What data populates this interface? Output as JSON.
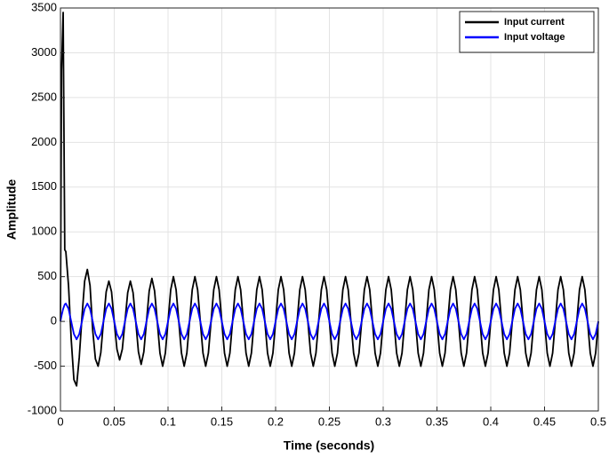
{
  "chart_data": {
    "type": "line",
    "xlabel": "Time (seconds)",
    "ylabel": "Amplitude",
    "xlim": [
      0,
      0.5
    ],
    "xticks": [
      0,
      0.05,
      0.1,
      0.15,
      0.2,
      0.25,
      0.3,
      0.35,
      0.4,
      0.45,
      0.5
    ],
    "ylim": [
      -1000,
      3500
    ],
    "yticks": [
      -1000,
      -500,
      0,
      500,
      1000,
      1500,
      2000,
      2500,
      3000,
      3500
    ],
    "grid": true,
    "legend": "upper-right",
    "x": [
      0,
      0.001,
      0.0025,
      0.004,
      0.005,
      0.0075,
      0.01,
      0.0125,
      0.015,
      0.0175,
      0.02,
      0.0225,
      0.025,
      0.0275,
      0.03,
      0.0325,
      0.035,
      0.0375,
      0.04,
      0.0425,
      0.045,
      0.0475,
      0.05,
      0.0525,
      0.055,
      0.0575,
      0.06,
      0.0625,
      0.065,
      0.0675,
      0.07,
      0.0725,
      0.075,
      0.0775,
      0.08,
      0.0825,
      0.085,
      0.0875,
      0.09,
      0.0925,
      0.095,
      0.0975,
      0.1,
      0.1025,
      0.105,
      0.1075,
      0.11,
      0.1125,
      0.115,
      0.1175,
      0.12,
      0.1225,
      0.125,
      0.1275,
      0.13,
      0.1325,
      0.135,
      0.1375,
      0.14,
      0.1425,
      0.145,
      0.1475,
      0.15,
      0.1525,
      0.155,
      0.1575,
      0.16,
      0.1625,
      0.165,
      0.1675,
      0.17,
      0.1725,
      0.175,
      0.1775,
      0.18,
      0.1825,
      0.185,
      0.1875,
      0.19,
      0.1925,
      0.195,
      0.1975,
      0.2,
      0.2025,
      0.205,
      0.2075,
      0.21,
      0.2125,
      0.215,
      0.2175,
      0.22,
      0.2225,
      0.225,
      0.2275,
      0.23,
      0.2325,
      0.235,
      0.2375,
      0.24,
      0.2425,
      0.245,
      0.2475,
      0.25,
      0.2525,
      0.255,
      0.2575,
      0.26,
      0.2625,
      0.265,
      0.2675,
      0.27,
      0.2725,
      0.275,
      0.2775,
      0.28,
      0.2825,
      0.285,
      0.2875,
      0.29,
      0.2925,
      0.295,
      0.2975,
      0.3,
      0.3025,
      0.305,
      0.3075,
      0.31,
      0.3125,
      0.315,
      0.3175,
      0.32,
      0.3225,
      0.325,
      0.3275,
      0.33,
      0.3325,
      0.335,
      0.3375,
      0.34,
      0.3425,
      0.345,
      0.3475,
      0.35,
      0.3525,
      0.355,
      0.3575,
      0.36,
      0.3625,
      0.365,
      0.3675,
      0.37,
      0.3725,
      0.375,
      0.3775,
      0.38,
      0.3825,
      0.385,
      0.3875,
      0.39,
      0.3925,
      0.395,
      0.3975,
      0.4,
      0.4025,
      0.405,
      0.4075,
      0.41,
      0.4125,
      0.415,
      0.4175,
      0.42,
      0.4225,
      0.425,
      0.4275,
      0.43,
      0.4325,
      0.435,
      0.4375,
      0.44,
      0.4425,
      0.445,
      0.4475,
      0.45,
      0.4525,
      0.455,
      0.4575,
      0.46,
      0.4625,
      0.465,
      0.4675,
      0.47,
      0.4725,
      0.475,
      0.4775,
      0.48,
      0.4825,
      0.485,
      0.4875,
      0.49,
      0.4925,
      0.495,
      0.4975,
      0.5
    ],
    "series": [
      {
        "name": "Input current",
        "color": "#000000",
        "values": [
          0,
          2800,
          3450,
          800,
          780,
          400,
          -200,
          -650,
          -720,
          -400,
          50,
          450,
          580,
          400,
          -100,
          -420,
          -500,
          -350,
          0,
          330,
          450,
          330,
          0,
          -310,
          -430,
          -310,
          0,
          320,
          450,
          320,
          0,
          -340,
          -480,
          -340,
          0,
          340,
          480,
          340,
          0,
          -354,
          -500,
          -354,
          0,
          354,
          500,
          354,
          0,
          -354,
          -500,
          -354,
          0,
          354,
          500,
          354,
          0,
          -354,
          -500,
          -354,
          0,
          354,
          500,
          354,
          0,
          -354,
          -500,
          -354,
          0,
          354,
          500,
          354,
          0,
          -354,
          -500,
          -354,
          0,
          354,
          500,
          354,
          0,
          -354,
          -500,
          -354,
          0,
          354,
          500,
          354,
          0,
          -354,
          -500,
          -354,
          0,
          354,
          500,
          354,
          0,
          -354,
          -500,
          -354,
          0,
          354,
          500,
          354,
          0,
          -354,
          -500,
          -354,
          0,
          354,
          500,
          354,
          0,
          -354,
          -500,
          -354,
          0,
          354,
          500,
          354,
          0,
          -354,
          -500,
          -354,
          0,
          354,
          500,
          354,
          0,
          -354,
          -500,
          -354,
          0,
          354,
          500,
          354,
          0,
          -354,
          -500,
          -354,
          0,
          354,
          500,
          354,
          0,
          -354,
          -500,
          -354,
          0,
          354,
          500,
          354,
          0,
          -354,
          -500,
          -354,
          0,
          354,
          500,
          354,
          0,
          -354,
          -500,
          -354,
          0,
          354,
          500,
          354,
          0,
          -354,
          -500,
          -354,
          0,
          354,
          500,
          354,
          0,
          -354,
          -500,
          -354,
          0,
          354,
          500,
          354,
          0,
          -354,
          -500,
          -354,
          0,
          354,
          500,
          354,
          0,
          -354,
          -500,
          -354,
          0,
          354,
          500,
          354,
          0,
          -354,
          -500,
          -354,
          0
        ]
      },
      {
        "name": "Input voltage",
        "color": "#0000ff",
        "values": [
          0,
          62,
          141,
          190,
          200,
          141,
          0,
          -141,
          -200,
          -141,
          0,
          141,
          200,
          141,
          0,
          -141,
          -200,
          -141,
          0,
          141,
          200,
          141,
          0,
          -141,
          -200,
          -141,
          0,
          141,
          200,
          141,
          0,
          -141,
          -200,
          -141,
          0,
          141,
          200,
          141,
          0,
          -141,
          -200,
          -141,
          0,
          141,
          200,
          141,
          0,
          -141,
          -200,
          -141,
          0,
          141,
          200,
          141,
          0,
          -141,
          -200,
          -141,
          0,
          141,
          200,
          141,
          0,
          -141,
          -200,
          -141,
          0,
          141,
          200,
          141,
          0,
          -141,
          -200,
          -141,
          0,
          141,
          200,
          141,
          0,
          -141,
          -200,
          -141,
          0,
          141,
          200,
          141,
          0,
          -141,
          -200,
          -141,
          0,
          141,
          200,
          141,
          0,
          -141,
          -200,
          -141,
          0,
          141,
          200,
          141,
          0,
          -141,
          -200,
          -141,
          0,
          141,
          200,
          141,
          0,
          -141,
          -200,
          -141,
          0,
          141,
          200,
          141,
          0,
          -141,
          -200,
          -141,
          0,
          141,
          200,
          141,
          0,
          -141,
          -200,
          -141,
          0,
          141,
          200,
          141,
          0,
          -141,
          -200,
          -141,
          0,
          141,
          200,
          141,
          0,
          -141,
          -200,
          -141,
          0,
          141,
          200,
          141,
          0,
          -141,
          -200,
          -141,
          0,
          141,
          200,
          141,
          0,
          -141,
          -200,
          -141,
          0,
          141,
          200,
          141,
          0,
          -141,
          -200,
          -141,
          0,
          141,
          200,
          141,
          0,
          -141,
          -200,
          -141,
          0,
          141,
          200,
          141,
          0,
          -141,
          -200,
          -141,
          0,
          141,
          200,
          141,
          0,
          -141,
          -200,
          -141,
          0,
          141,
          200,
          141,
          0,
          -141,
          -200,
          -141,
          0
        ]
      }
    ]
  }
}
